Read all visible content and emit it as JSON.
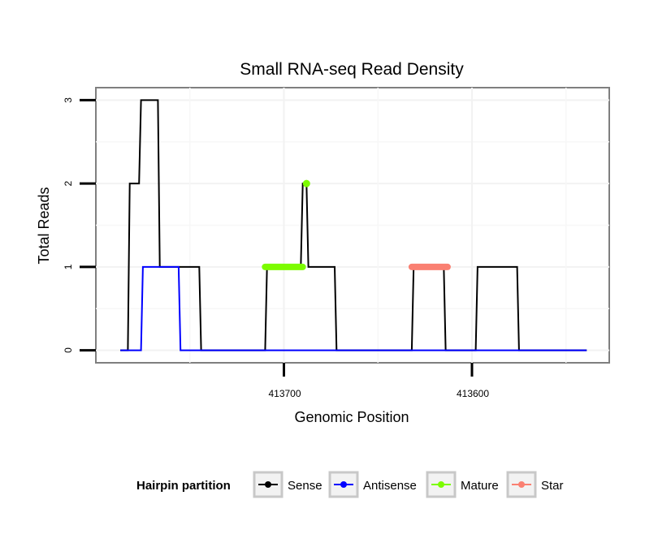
{
  "chart_data": {
    "type": "line",
    "title": "Small RNA-seq Read Density",
    "xlabel": "Genomic Position",
    "ylabel": "Total Reads",
    "x_reversed": true,
    "xlim": [
      413800,
      413527
    ],
    "ylim": [
      -0.15,
      3.15
    ],
    "xticks": [
      {
        "value": 413700,
        "label": "413700"
      },
      {
        "value": 413600,
        "label": "413600"
      }
    ],
    "yticks": [
      {
        "value": 0,
        "label": "0"
      },
      {
        "value": 1,
        "label": "1"
      },
      {
        "value": 2,
        "label": "2"
      },
      {
        "value": 3,
        "label": "3"
      }
    ],
    "grid": true,
    "legend": {
      "title": "Hairpin partition",
      "position": "bottom",
      "entries": [
        {
          "name": "Sense",
          "color": "#000000"
        },
        {
          "name": "Antisense",
          "color": "#0000ff"
        },
        {
          "name": "Mature",
          "color": "#7cfc00"
        },
        {
          "name": "Star",
          "color": "#fa8072"
        }
      ]
    },
    "series": [
      {
        "name": "Sense",
        "color": "#000000",
        "kind": "line",
        "x": [
          413787,
          413783,
          413782,
          413777,
          413776,
          413767,
          413766,
          413756,
          413755,
          413745,
          413744,
          413710,
          413709,
          413694,
          413693,
          413691,
          413690,
          413688,
          413687,
          413673,
          413672,
          413632,
          413631,
          413615,
          413614,
          413598,
          413597,
          413576,
          413575,
          413539
        ],
        "y": [
          0,
          0,
          2,
          2,
          3,
          3,
          1,
          1,
          1,
          1,
          0,
          0,
          1,
          1,
          1,
          1,
          2,
          2,
          1,
          1,
          0,
          0,
          1,
          1,
          0,
          0,
          1,
          1,
          0,
          0
        ]
      },
      {
        "name": "Antisense",
        "color": "#0000ff",
        "kind": "line",
        "x": [
          413787,
          413776,
          413775,
          413756,
          413755,
          413539
        ],
        "y": [
          0,
          0,
          1,
          1,
          0,
          0
        ]
      },
      {
        "name": "Mature",
        "color": "#7cfc00",
        "kind": "band",
        "x": [
          413710,
          413690
        ],
        "y": [
          1,
          1
        ],
        "peak": {
          "x": 413688,
          "y": 2
        }
      },
      {
        "name": "Star",
        "color": "#fa8072",
        "kind": "band",
        "x": [
          413632,
          413613
        ],
        "y": [
          1,
          1
        ]
      }
    ]
  }
}
